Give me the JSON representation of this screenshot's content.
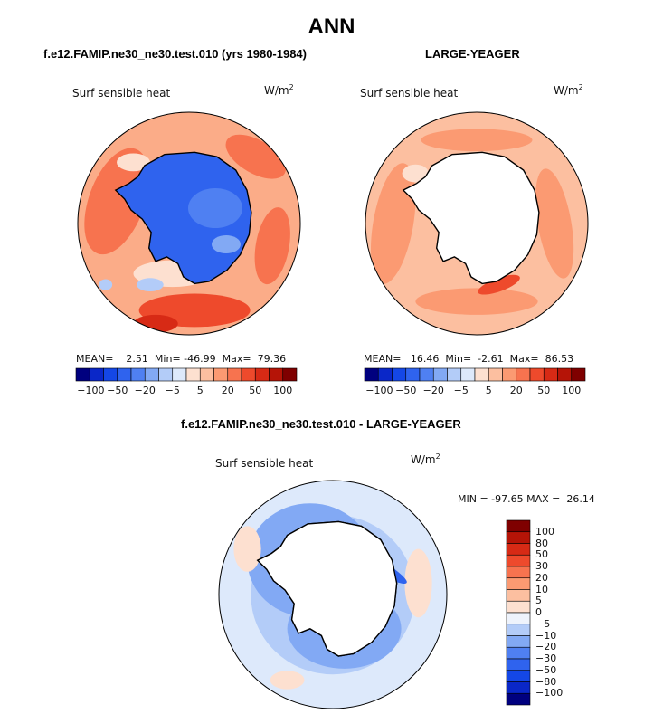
{
  "page": {
    "title": "ANN"
  },
  "palette": [
    "#00007f",
    "#0a27c8",
    "#1447e6",
    "#2f63ee",
    "#4f80f2",
    "#82a9f4",
    "#b3ccf8",
    "#dde9fb",
    "#fde0d0",
    "#fcbfa0",
    "#fb9a72",
    "#f7734f",
    "#ee4a2c",
    "#d72a15",
    "#b51407",
    "#7f0000"
  ],
  "panels": [
    {
      "title": "f.e12.FAMIP.ne30_ne30.test.010 (yrs 1980-1984)",
      "variable": "Surf sensible heat",
      "units": "W/m",
      "units_exp": "2",
      "stats": {
        "mean_label": "MEAN=",
        "mean": "2.51",
        "min_label": "Min=",
        "min": "-46.99",
        "max_label": "Max=",
        "max": "79.36"
      },
      "colorbar_ticks": [
        "−100",
        "−50",
        "−20",
        "−5",
        "5",
        "20",
        "50",
        "100"
      ]
    },
    {
      "title": "LARGE-YEAGER",
      "variable": "Surf sensible heat",
      "units": "W/m",
      "units_exp": "2",
      "stats": {
        "mean_label": "MEAN=",
        "mean": "16.46",
        "min_label": "Min=",
        "min": "-2.61",
        "max_label": "Max=",
        "max": "86.53"
      },
      "colorbar_ticks": [
        "−100",
        "−50",
        "−20",
        "−5",
        "5",
        "20",
        "50",
        "100"
      ]
    },
    {
      "title": "f.e12.FAMIP.ne30_ne30.test.010 - LARGE-YEAGER",
      "variable": "Surf sensible heat",
      "units": "W/m",
      "units_exp": "2",
      "stats_text": "MIN = -97.65 MAX =  26.14",
      "colorbar_ticks": [
        "100",
        "80",
        "50",
        "30",
        "20",
        "10",
        "5",
        "0",
        "−5",
        "−10",
        "−20",
        "−30",
        "−50",
        "−80",
        "−100"
      ],
      "palette": [
        "#7f0000",
        "#b51407",
        "#d72a15",
        "#ee4a2c",
        "#f7734f",
        "#fb9a72",
        "#fcbfa0",
        "#fde0d0",
        "#eef3fc",
        "#b3ccf8",
        "#82a9f4",
        "#4f80f2",
        "#2f63ee",
        "#1447e6",
        "#0a27c8",
        "#00007f"
      ]
    }
  ]
}
